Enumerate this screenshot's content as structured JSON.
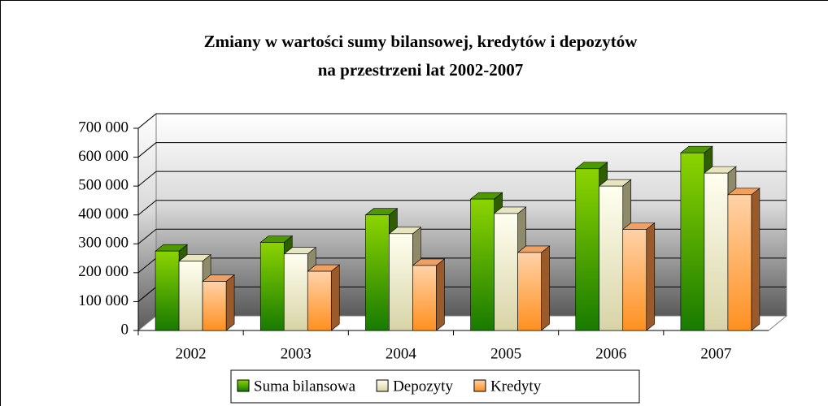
{
  "chart_data": {
    "type": "bar3d",
    "title": [
      "Zmiany w wartości sumy bilansowej, kredytów i depozytów",
      "na przestrzeni lat 2002-2007"
    ],
    "categories": [
      "2002",
      "2003",
      "2004",
      "2005",
      "2006",
      "2007"
    ],
    "series": [
      {
        "name": "Suma bilansowa",
        "color": "#5fb000",
        "values": [
          275000,
          305000,
          400000,
          455000,
          560000,
          615000
        ]
      },
      {
        "name": "Depozyty",
        "color": "#f5f2c0",
        "values": [
          240000,
          265000,
          335000,
          405000,
          500000,
          545000
        ]
      },
      {
        "name": "Kredyty",
        "color": "#ffb060",
        "values": [
          170000,
          205000,
          225000,
          270000,
          350000,
          470000
        ]
      }
    ],
    "ylim": [
      0,
      700000
    ],
    "yticks": [
      0,
      {
        "value": 100000,
        "label": "100 000"
      },
      {
        "value": 200000,
        "label": "200 000"
      },
      {
        "value": 300000,
        "label": "300 000"
      },
      {
        "value": 400000,
        "label": "400 000"
      },
      {
        "value": 500000,
        "label": "500 000"
      },
      {
        "value": 600000,
        "label": "600 000"
      },
      {
        "value": 700000,
        "label": "700 000"
      }
    ],
    "grid": true,
    "legend": "bottom"
  }
}
